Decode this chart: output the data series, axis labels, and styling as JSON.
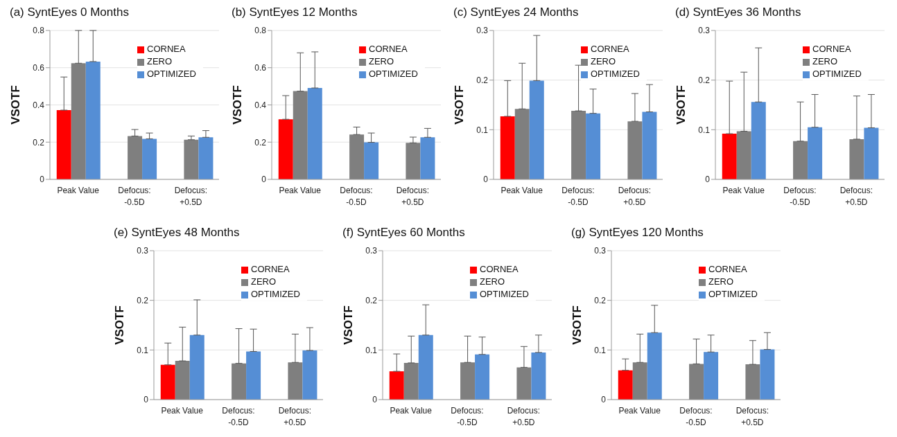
{
  "chart_data": [
    {
      "type": "bar",
      "title": "(a) SyntEyes 0 Months",
      "ylabel": "VSOTF",
      "categories": [
        "Peak Value",
        "Defocus:\n-0.5D",
        "Defocus:\n+0.5D"
      ],
      "ylim": [
        0,
        0.8
      ],
      "yticks": [
        0,
        0.2,
        0.4,
        0.6,
        0.8
      ],
      "grid": "y",
      "legend": "top right",
      "series": [
        {
          "name": "CORNEA",
          "color": "#ff0000",
          "values": [
            0.372,
            null,
            null
          ],
          "errors": [
            [
              0.372,
              0.55
            ],
            null,
            null
          ]
        },
        {
          "name": "ZERO",
          "color": "#7f7f7f",
          "values": [
            0.624,
            0.233,
            0.213
          ],
          "errors": [
            [
              0.624,
              0.8
            ],
            [
              0.233,
              0.268
            ],
            [
              0.213,
              0.233
            ]
          ]
        },
        {
          "name": "OPTIMIZED",
          "color": "#558ed5",
          "values": [
            0.633,
            0.218,
            0.226
          ],
          "errors": [
            [
              0.633,
              0.8
            ],
            [
              0.218,
              0.249
            ],
            [
              0.226,
              0.262
            ]
          ]
        }
      ]
    },
    {
      "type": "bar",
      "title": "(b) SyntEyes 12 Months",
      "ylabel": "VSOTF",
      "categories": [
        "Peak Value",
        "Defocus:\n-0.5D",
        "Defocus:\n+0.5D"
      ],
      "ylim": [
        0,
        0.8
      ],
      "yticks": [
        0,
        0.2,
        0.4,
        0.6,
        0.8
      ],
      "grid": "y",
      "legend": "top right",
      "series": [
        {
          "name": "CORNEA",
          "color": "#ff0000",
          "values": [
            0.323,
            null,
            null
          ],
          "errors": [
            [
              0.323,
              0.45
            ],
            null,
            null
          ]
        },
        {
          "name": "ZERO",
          "color": "#7f7f7f",
          "values": [
            0.474,
            0.241,
            0.196
          ],
          "errors": [
            [
              0.474,
              0.68
            ],
            [
              0.241,
              0.281
            ],
            [
              0.196,
              0.227
            ]
          ]
        },
        {
          "name": "OPTIMIZED",
          "color": "#558ed5",
          "values": [
            0.491,
            0.199,
            0.226
          ],
          "errors": [
            [
              0.491,
              0.685
            ],
            [
              0.199,
              0.249
            ],
            [
              0.226,
              0.274
            ]
          ]
        }
      ]
    },
    {
      "type": "bar",
      "title": "(c) SyntEyes 24 Months",
      "ylabel": "VSOTF",
      "categories": [
        "Peak Value",
        "Defocus:\n-0.5D",
        "Defocus:\n+0.5D"
      ],
      "ylim": [
        0,
        0.3
      ],
      "yticks": [
        0,
        0.1,
        0.2,
        0.3
      ],
      "grid": "y",
      "legend": "top right",
      "series": [
        {
          "name": "CORNEA",
          "color": "#ff0000",
          "values": [
            0.127,
            null,
            null
          ],
          "errors": [
            [
              0.127,
              0.199
            ],
            null,
            null
          ]
        },
        {
          "name": "ZERO",
          "color": "#7f7f7f",
          "values": [
            0.142,
            0.138,
            0.117
          ],
          "errors": [
            [
              0.142,
              0.234
            ],
            [
              0.138,
              0.23
            ],
            [
              0.117,
              0.173
            ]
          ]
        },
        {
          "name": "OPTIMIZED",
          "color": "#558ed5",
          "values": [
            0.199,
            0.133,
            0.136
          ],
          "errors": [
            [
              0.199,
              0.29
            ],
            [
              0.133,
              0.182
            ],
            [
              0.136,
              0.191
            ]
          ]
        }
      ]
    },
    {
      "type": "bar",
      "title": "(d) SyntEyes 36 Months",
      "ylabel": "VSOTF",
      "categories": [
        "Peak Value",
        "Defocus:\n-0.5D",
        "Defocus:\n+0.5D"
      ],
      "ylim": [
        0,
        0.3
      ],
      "yticks": [
        0,
        0.1,
        0.2,
        0.3
      ],
      "grid": "y",
      "legend": "top right",
      "series": [
        {
          "name": "CORNEA",
          "color": "#ff0000",
          "values": [
            0.092,
            null,
            null
          ],
          "errors": [
            [
              0.092,
              0.198
            ],
            null,
            null
          ]
        },
        {
          "name": "ZERO",
          "color": "#7f7f7f",
          "values": [
            0.097,
            0.077,
            0.081
          ],
          "errors": [
            [
              0.097,
              0.216
            ],
            [
              0.077,
              0.156
            ],
            [
              0.081,
              0.168
            ]
          ]
        },
        {
          "name": "OPTIMIZED",
          "color": "#558ed5",
          "values": [
            0.156,
            0.105,
            0.104
          ],
          "errors": [
            [
              0.156,
              0.265
            ],
            [
              0.105,
              0.171
            ],
            [
              0.104,
              0.171
            ]
          ]
        }
      ]
    },
    {
      "type": "bar",
      "title": "(e) SyntEyes 48 Months",
      "ylabel": "VSOTF",
      "categories": [
        "Peak Value",
        "Defocus:\n-0.5D",
        "Defocus:\n+0.5D"
      ],
      "ylim": [
        0,
        0.3
      ],
      "yticks": [
        0,
        0.1,
        0.2,
        0.3
      ],
      "grid": "y",
      "legend": "top right",
      "series": [
        {
          "name": "CORNEA",
          "color": "#ff0000",
          "values": [
            0.07,
            null,
            null
          ],
          "errors": [
            [
              0.07,
              0.114
            ],
            null,
            null
          ]
        },
        {
          "name": "ZERO",
          "color": "#7f7f7f",
          "values": [
            0.078,
            0.073,
            0.075
          ],
          "errors": [
            [
              0.078,
              0.146
            ],
            [
              0.073,
              0.143
            ],
            [
              0.075,
              0.132
            ]
          ]
        },
        {
          "name": "OPTIMIZED",
          "color": "#558ed5",
          "values": [
            0.13,
            0.097,
            0.099
          ],
          "errors": [
            [
              0.13,
              0.201
            ],
            [
              0.097,
              0.142
            ],
            [
              0.099,
              0.145
            ]
          ]
        }
      ]
    },
    {
      "type": "bar",
      "title": "(f) SyntEyes 60 Months",
      "ylabel": "VSOTF",
      "categories": [
        "Peak Value",
        "Defocus:\n-0.5D",
        "Defocus:\n+0.5D"
      ],
      "ylim": [
        0,
        0.3
      ],
      "yticks": [
        0,
        0.1,
        0.2,
        0.3
      ],
      "grid": "y",
      "legend": "top right",
      "series": [
        {
          "name": "CORNEA",
          "color": "#ff0000",
          "values": [
            0.057,
            null,
            null
          ],
          "errors": [
            [
              0.057,
              0.092
            ],
            null,
            null
          ]
        },
        {
          "name": "ZERO",
          "color": "#7f7f7f",
          "values": [
            0.074,
            0.075,
            0.065
          ],
          "errors": [
            [
              0.074,
              0.128
            ],
            [
              0.075,
              0.128
            ],
            [
              0.065,
              0.107
            ]
          ]
        },
        {
          "name": "OPTIMIZED",
          "color": "#558ed5",
          "values": [
            0.13,
            0.091,
            0.095
          ],
          "errors": [
            [
              0.13,
              0.191
            ],
            [
              0.091,
              0.126
            ],
            [
              0.095,
              0.13
            ]
          ]
        }
      ]
    },
    {
      "type": "bar",
      "title": "(g) SyntEyes 120 Months",
      "ylabel": "VSOTF",
      "categories": [
        "Peak Value",
        "Defocus:\n-0.5D",
        "Defocus:\n+0.5D"
      ],
      "ylim": [
        0,
        0.3
      ],
      "yticks": [
        0,
        0.1,
        0.2,
        0.3
      ],
      "grid": "y",
      "legend": "top right",
      "series": [
        {
          "name": "CORNEA",
          "color": "#ff0000",
          "values": [
            0.059,
            null,
            null
          ],
          "errors": [
            [
              0.059,
              0.082
            ],
            null,
            null
          ]
        },
        {
          "name": "ZERO",
          "color": "#7f7f7f",
          "values": [
            0.075,
            0.072,
            0.071
          ],
          "errors": [
            [
              0.075,
              0.132
            ],
            [
              0.072,
              0.122
            ],
            [
              0.071,
              0.119
            ]
          ]
        },
        {
          "name": "OPTIMIZED",
          "color": "#558ed5",
          "values": [
            0.135,
            0.096,
            0.101
          ],
          "errors": [
            [
              0.135,
              0.19
            ],
            [
              0.096,
              0.13
            ],
            [
              0.101,
              0.135
            ]
          ]
        }
      ]
    }
  ]
}
